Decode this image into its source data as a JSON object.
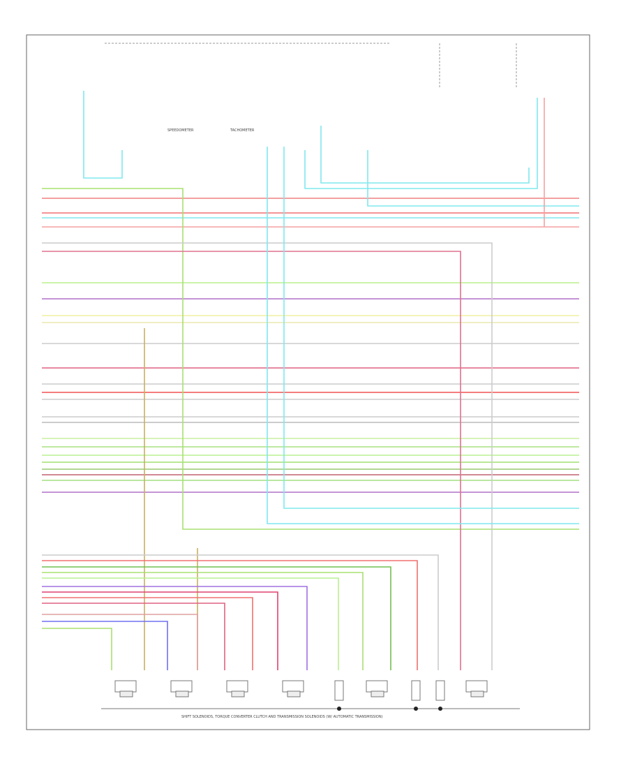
{
  "diagram": {
    "labels": {
      "speedometer": "SPEEDOMETER",
      "tachometer": "TACHOMETER"
    },
    "caption": "SHIFT SOLENOIDS, TORQUE CONVERTER CLUTCH AND TRANSMISSION SOLENOIDS (W/ AUTOMATIC TRANSMISSION)"
  }
}
